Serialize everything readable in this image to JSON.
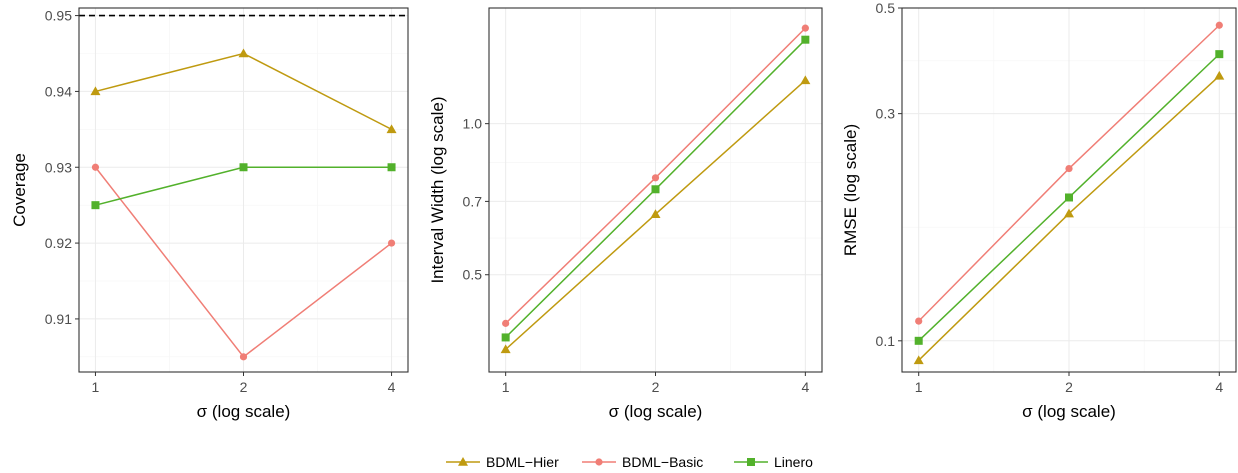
{
  "legend": {
    "entries": [
      {
        "name": "BDML−Hier",
        "color": "#bf9a10",
        "shape": "triangle"
      },
      {
        "name": "BDML−Basic",
        "color": "#f07e76",
        "shape": "circle"
      },
      {
        "name": "Linero",
        "color": "#52b12b",
        "shape": "square"
      }
    ]
  },
  "chart_data": [
    {
      "type": "line",
      "xlabel": "σ (log scale)",
      "ylabel": "Coverage",
      "x": [
        1,
        2,
        4
      ],
      "x_scale": "log",
      "x_ticks": [
        "1",
        "2",
        "4"
      ],
      "y_scale": "linear",
      "ylim": [
        0.903,
        0.951
      ],
      "y_ticks": [
        0.91,
        0.92,
        0.93,
        0.94,
        0.95
      ],
      "y_tick_labels": [
        "0.91",
        "0.92",
        "0.93",
        "0.94",
        "0.95"
      ],
      "reference_line": {
        "y": 0.95,
        "style": "dashed",
        "color": "#000000"
      },
      "grid": true,
      "series": [
        {
          "name": "BDML−Hier",
          "values": [
            0.94,
            0.945,
            0.935
          ]
        },
        {
          "name": "BDML−Basic",
          "values": [
            0.93,
            0.905,
            0.92
          ]
        },
        {
          "name": "Linero",
          "values": [
            0.925,
            0.93,
            0.93
          ]
        }
      ]
    },
    {
      "type": "line",
      "xlabel": "σ (log scale)",
      "ylabel": "Interval Width (log scale)",
      "x": [
        1,
        2,
        4
      ],
      "x_scale": "log",
      "x_ticks": [
        "1",
        "2",
        "4"
      ],
      "y_scale": "log",
      "ylim": [
        0.32,
        1.7
      ],
      "y_ticks": [
        0.5,
        0.7,
        1.0
      ],
      "y_tick_labels": [
        "0.5",
        "0.7",
        "1.0"
      ],
      "grid": true,
      "series": [
        {
          "name": "BDML−Hier",
          "values": [
            0.355,
            0.66,
            1.22
          ]
        },
        {
          "name": "BDML−Basic",
          "values": [
            0.4,
            0.78,
            1.55
          ]
        },
        {
          "name": "Linero",
          "values": [
            0.375,
            0.74,
            1.47
          ]
        }
      ]
    },
    {
      "type": "line",
      "xlabel": "σ (log scale)",
      "ylabel": "RMSE (log scale)",
      "x": [
        1,
        2,
        4
      ],
      "x_scale": "log",
      "x_ticks": [
        "1",
        "2",
        "4"
      ],
      "y_scale": "log",
      "ylim": [
        0.086,
        0.5
      ],
      "y_ticks": [
        0.1,
        0.3,
        0.5
      ],
      "y_tick_labels": [
        "0.1",
        "0.3",
        "0.5"
      ],
      "grid": true,
      "series": [
        {
          "name": "BDML−Hier",
          "values": [
            0.091,
            0.185,
            0.36
          ]
        },
        {
          "name": "BDML−Basic",
          "values": [
            0.11,
            0.23,
            0.46
          ]
        },
        {
          "name": "Linero",
          "values": [
            0.1,
            0.2,
            0.4
          ]
        }
      ]
    }
  ]
}
